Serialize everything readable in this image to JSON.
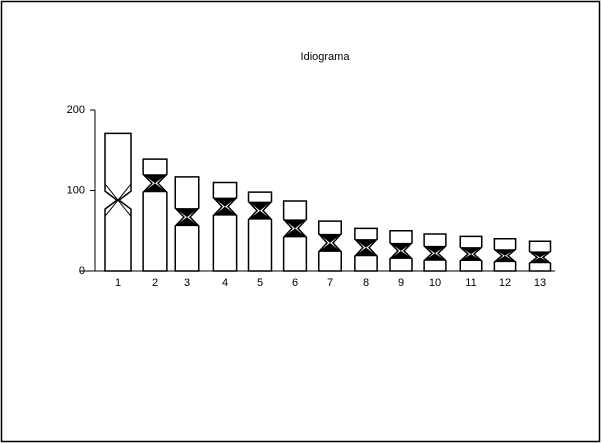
{
  "chart_data": {
    "type": "idiogram",
    "title": "Idiograma",
    "categories": [
      "1",
      "2",
      "3",
      "4",
      "5",
      "6",
      "7",
      "8",
      "9",
      "10",
      "11",
      "12",
      "13"
    ],
    "values": [
      171,
      139,
      117,
      110,
      98,
      87,
      62,
      53,
      50,
      46,
      43,
      40,
      37
    ],
    "centromere": [
      88,
      109,
      67,
      80,
      75,
      53,
      35,
      29,
      25,
      22,
      21,
      19,
      17
    ],
    "color": "#000000",
    "ylim": [
      0,
      200
    ],
    "yticks": [
      0,
      100,
      200
    ]
  }
}
